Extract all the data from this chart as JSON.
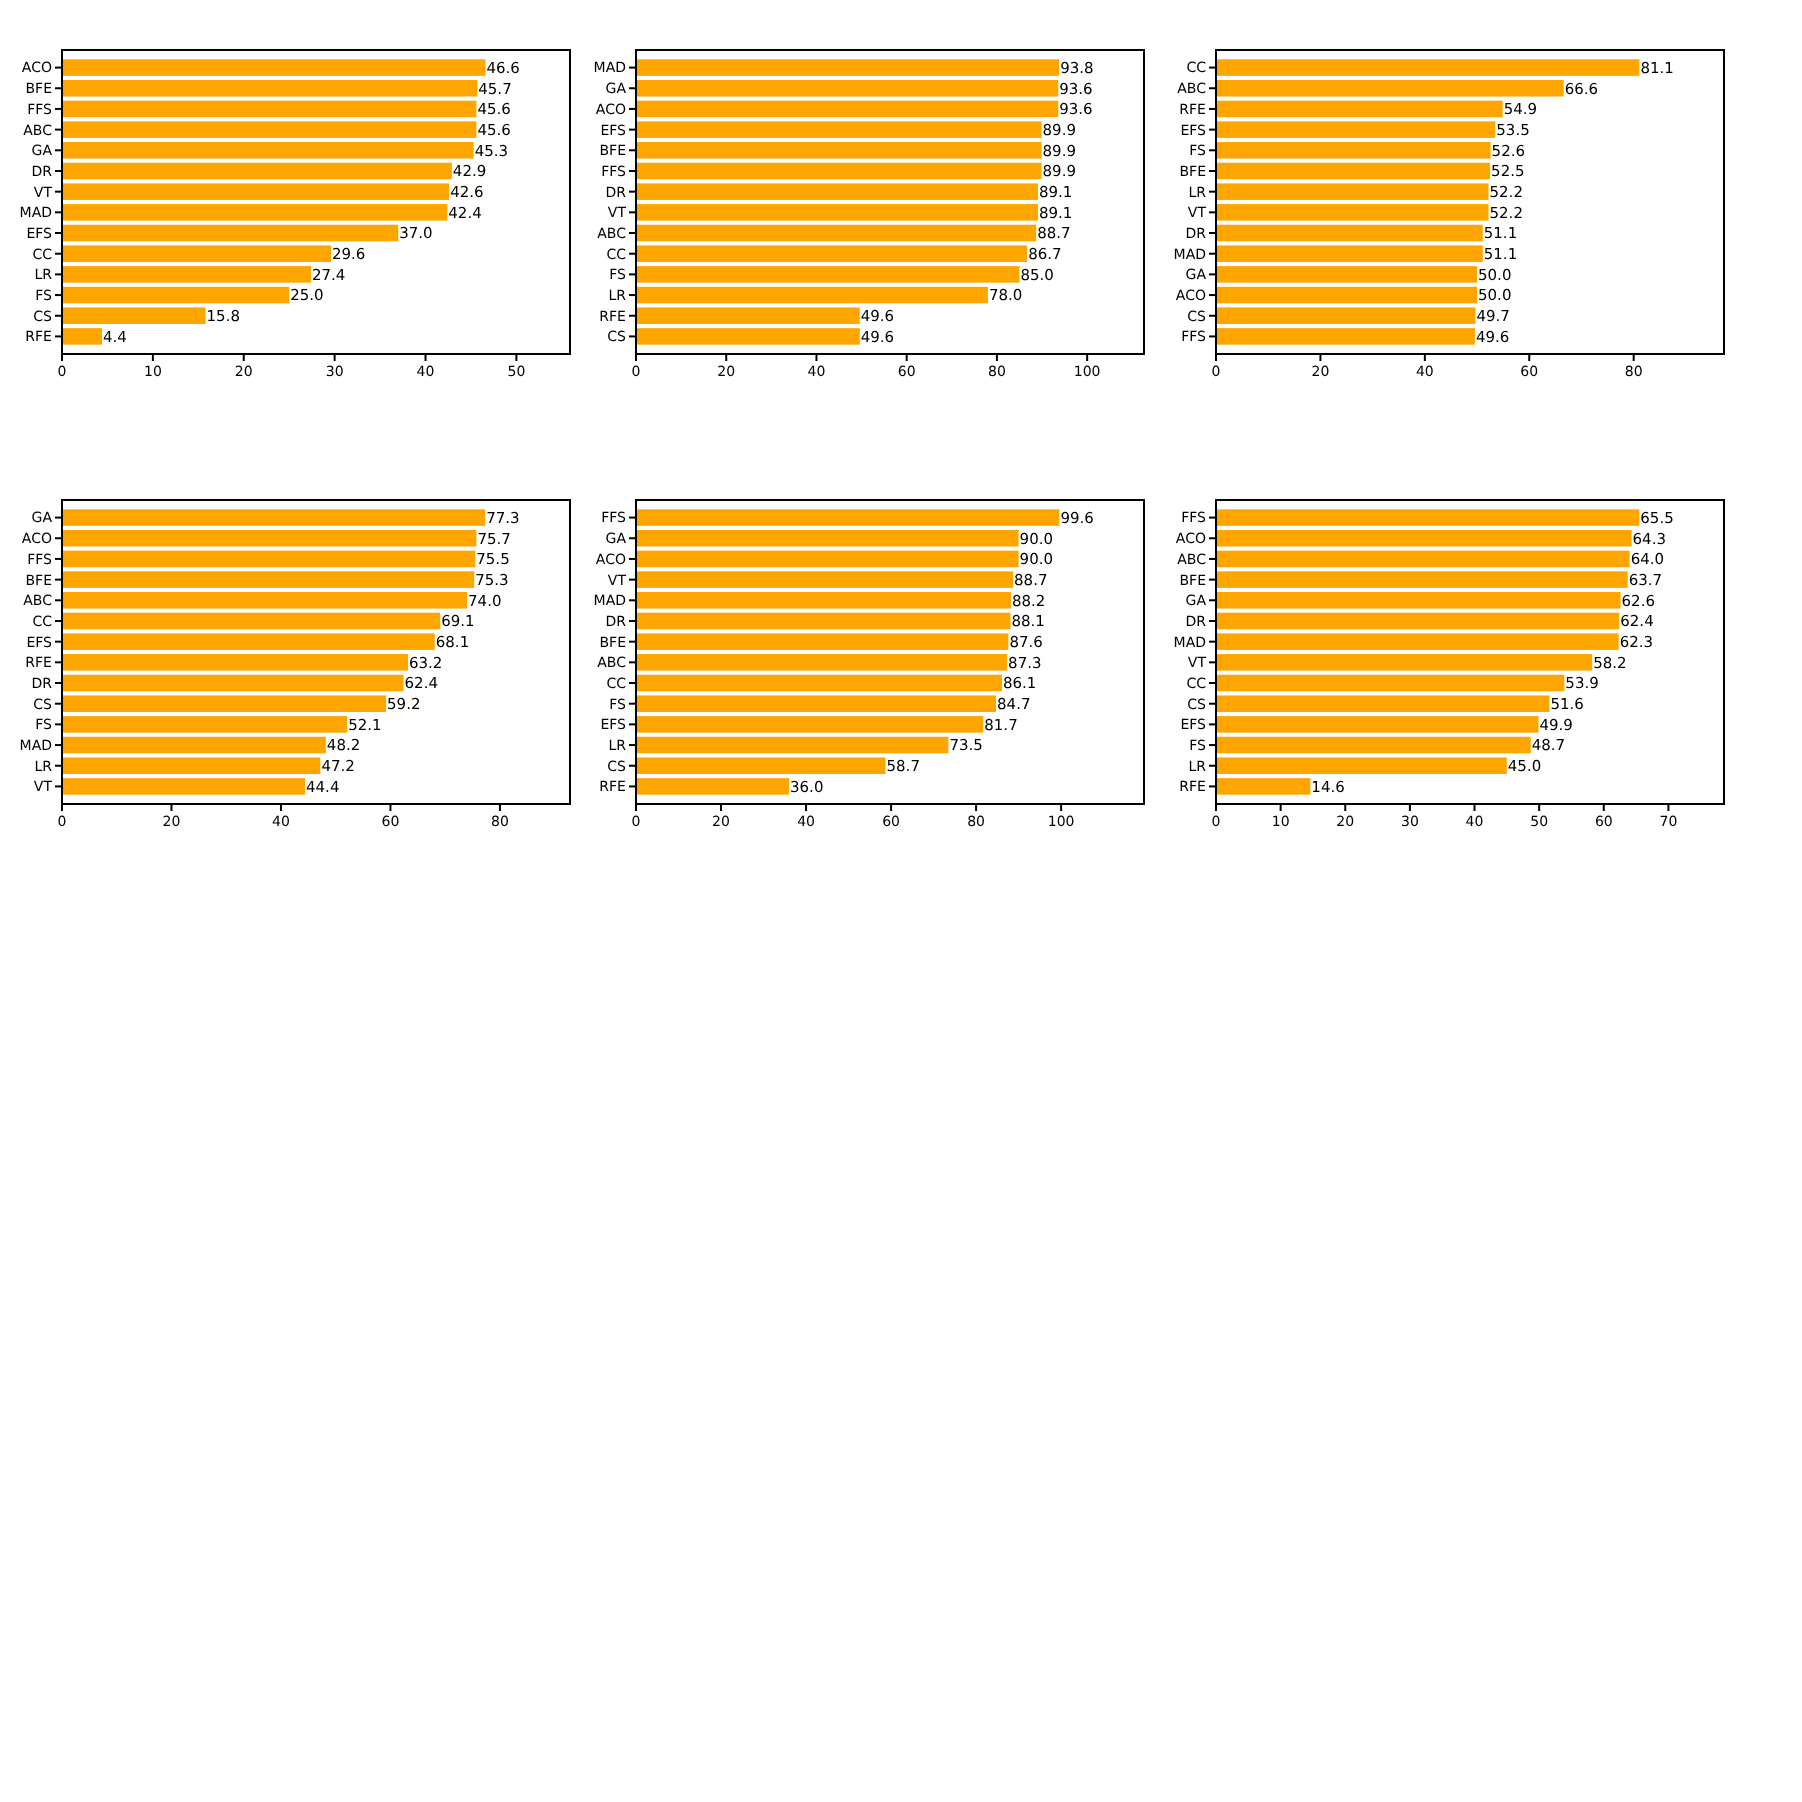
{
  "chart_data": [
    {
      "type": "bar",
      "orientation": "horizontal",
      "categories": [
        "ACO",
        "BFE",
        "FFS",
        "ABC",
        "GA",
        "DR",
        "VT",
        "MAD",
        "EFS",
        "CC",
        "LR",
        "FS",
        "CS",
        "RFE"
      ],
      "values": [
        46.6,
        45.7,
        45.6,
        45.6,
        45.3,
        42.9,
        42.6,
        42.4,
        37.0,
        29.6,
        27.4,
        25.0,
        15.8,
        4.4
      ],
      "value_labels": [
        "46.6",
        "45.7",
        "45.6",
        "45.6",
        "45.3",
        "42.9",
        "42.6",
        "42.4",
        "37.0",
        "29.6",
        "27.4",
        "25.0",
        "15.8",
        "4.4"
      ],
      "color": "#ffa500",
      "xlim": [
        0,
        55.9
      ],
      "xticks": [
        0,
        10,
        20,
        30,
        40,
        50
      ],
      "grid": false
    },
    {
      "type": "bar",
      "orientation": "horizontal",
      "categories": [
        "MAD",
        "GA",
        "ACO",
        "EFS",
        "BFE",
        "FFS",
        "DR",
        "VT",
        "ABC",
        "CC",
        "FS",
        "LR",
        "RFE",
        "CS"
      ],
      "values": [
        93.8,
        93.6,
        93.6,
        89.9,
        89.9,
        89.9,
        89.1,
        89.1,
        88.7,
        86.7,
        85.0,
        78.0,
        49.6,
        49.6
      ],
      "value_labels": [
        "93.8",
        "93.6",
        "93.6",
        "89.9",
        "89.9",
        "89.9",
        "89.1",
        "89.1",
        "88.7",
        "86.7",
        "85.0",
        "78.0",
        "49.6",
        "49.6"
      ],
      "color": "#ffa500",
      "xlim": [
        0,
        112.6
      ],
      "xticks": [
        0,
        20,
        40,
        60,
        80,
        100
      ],
      "grid": false
    },
    {
      "type": "bar",
      "orientation": "horizontal",
      "categories": [
        "CC",
        "ABC",
        "RFE",
        "EFS",
        "FS",
        "BFE",
        "LR",
        "VT",
        "DR",
        "MAD",
        "GA",
        "ACO",
        "CS",
        "FFS"
      ],
      "values": [
        81.1,
        66.6,
        54.9,
        53.5,
        52.6,
        52.5,
        52.2,
        52.2,
        51.1,
        51.1,
        50.0,
        50.0,
        49.7,
        49.6
      ],
      "value_labels": [
        "81.1",
        "66.6",
        "54.9",
        "53.5",
        "52.6",
        "52.5",
        "52.2",
        "52.2",
        "51.1",
        "51.1",
        "50.0",
        "50.0",
        "49.7",
        "49.6"
      ],
      "color": "#ffa500",
      "xlim": [
        0,
        97.3
      ],
      "xticks": [
        0,
        20,
        40,
        60,
        80
      ],
      "grid": false
    },
    {
      "type": "bar",
      "orientation": "horizontal",
      "categories": [
        "GA",
        "ACO",
        "FFS",
        "BFE",
        "ABC",
        "CC",
        "EFS",
        "RFE",
        "DR",
        "CS",
        "FS",
        "MAD",
        "LR",
        "VT"
      ],
      "values": [
        77.3,
        75.7,
        75.5,
        75.3,
        74.0,
        69.1,
        68.1,
        63.2,
        62.4,
        59.2,
        52.1,
        48.2,
        47.2,
        44.4
      ],
      "value_labels": [
        "77.3",
        "75.7",
        "75.5",
        "75.3",
        "74.0",
        "69.1",
        "68.1",
        "63.2",
        "62.4",
        "59.2",
        "52.1",
        "48.2",
        "47.2",
        "44.4"
      ],
      "color": "#ffa500",
      "xlim": [
        0,
        92.8
      ],
      "xticks": [
        0,
        20,
        40,
        60,
        80
      ],
      "grid": false
    },
    {
      "type": "bar",
      "orientation": "horizontal",
      "categories": [
        "FFS",
        "GA",
        "ACO",
        "VT",
        "MAD",
        "DR",
        "BFE",
        "ABC",
        "CC",
        "FS",
        "EFS",
        "LR",
        "CS",
        "RFE"
      ],
      "values": [
        99.6,
        90.0,
        90.0,
        88.7,
        88.2,
        88.1,
        87.6,
        87.3,
        86.1,
        84.7,
        81.7,
        73.5,
        58.7,
        36.0
      ],
      "value_labels": [
        "99.6",
        "90.0",
        "90.0",
        "88.7",
        "88.2",
        "88.1",
        "87.6",
        "87.3",
        "86.1",
        "84.7",
        "81.7",
        "73.5",
        "58.7",
        "36.0"
      ],
      "color": "#ffa500",
      "xlim": [
        0,
        119.5
      ],
      "xticks": [
        0,
        20,
        40,
        60,
        80,
        100
      ],
      "grid": false
    },
    {
      "type": "bar",
      "orientation": "horizontal",
      "categories": [
        "FFS",
        "ACO",
        "ABC",
        "BFE",
        "GA",
        "DR",
        "MAD",
        "VT",
        "CC",
        "CS",
        "EFS",
        "FS",
        "LR",
        "RFE"
      ],
      "values": [
        65.5,
        64.3,
        64.0,
        63.7,
        62.6,
        62.4,
        62.3,
        58.2,
        53.9,
        51.6,
        49.9,
        48.7,
        45.0,
        14.6
      ],
      "value_labels": [
        "65.5",
        "64.3",
        "64.0",
        "63.7",
        "62.6",
        "62.4",
        "62.3",
        "58.2",
        "53.9",
        "51.6",
        "49.9",
        "48.7",
        "45.0",
        "14.6"
      ],
      "color": "#ffa500",
      "xlim": [
        0,
        78.6
      ],
      "xticks": [
        0,
        10,
        20,
        30,
        40,
        50,
        60,
        70
      ],
      "grid": false
    }
  ]
}
